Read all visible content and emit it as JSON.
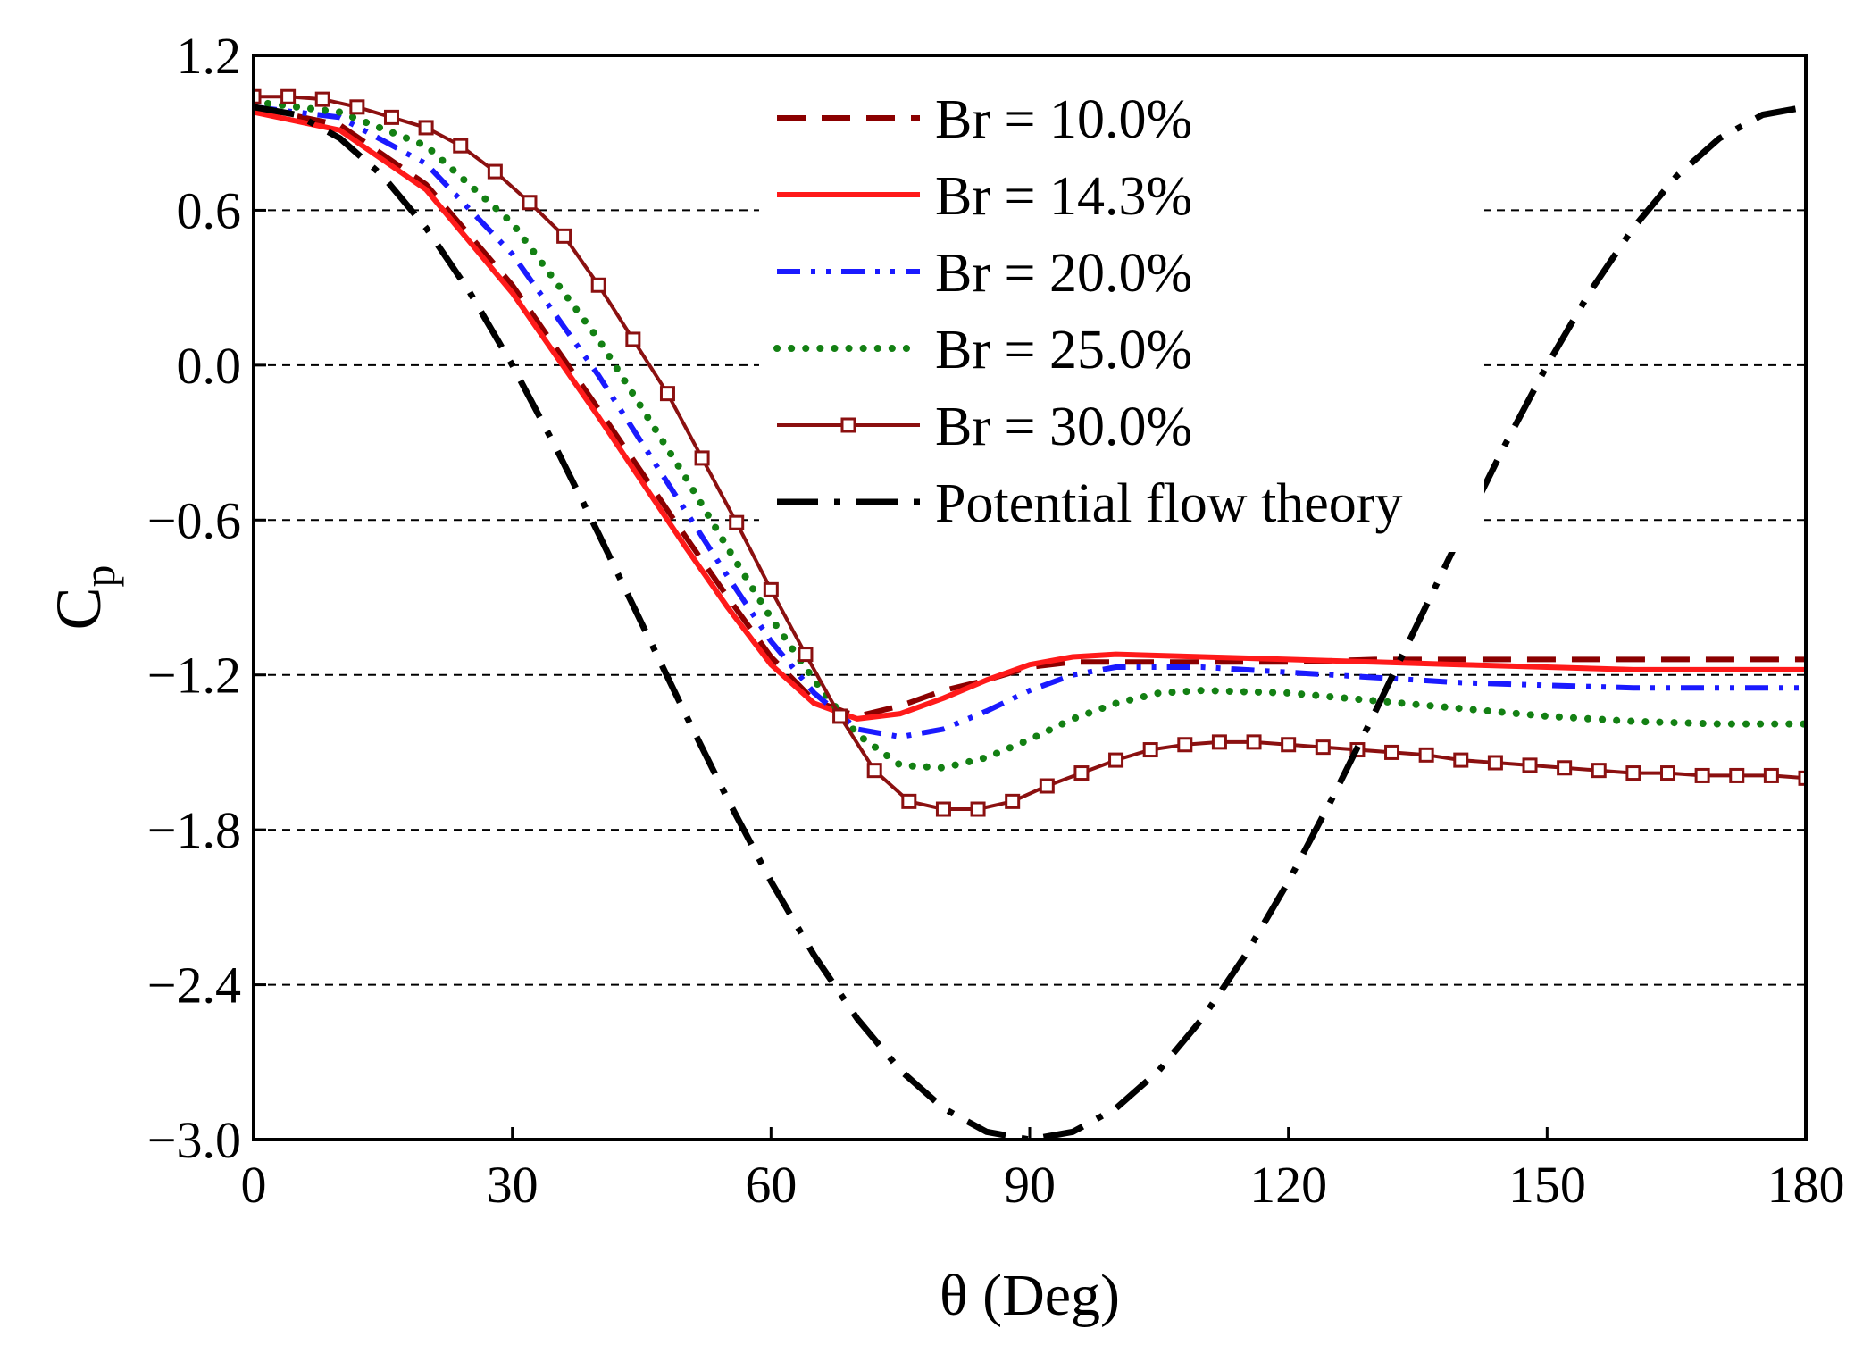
{
  "chart_data": {
    "type": "line",
    "title": "",
    "xlabel": "θ (Deg)",
    "ylabel": {
      "main": "C",
      "sub": "p"
    },
    "xlim": [
      0,
      180
    ],
    "ylim": [
      -3.0,
      1.2
    ],
    "xticks": [
      0,
      30,
      60,
      90,
      120,
      150,
      180
    ],
    "xtick_labels": [
      "0",
      "30",
      "60",
      "90",
      "120",
      "150",
      "180"
    ],
    "yticks": [
      1.2,
      0.6,
      0.0,
      -0.6,
      -1.2,
      -1.8,
      -2.4,
      -3.0
    ],
    "ytick_labels": [
      "1.2",
      "0.6",
      "0.0",
      "−0.6",
      "−1.2",
      "−1.8",
      "−2.4",
      "−3.0"
    ],
    "grid": {
      "y": [
        0.6,
        0.0,
        -0.6,
        -1.2,
        -1.8,
        -2.4
      ],
      "style": "dashed"
    },
    "legend_position": "top-center",
    "series": [
      {
        "name": "Br = 10.0%",
        "color": "#8b0000",
        "style": "dashed",
        "marker": "none",
        "x": [
          0,
          10,
          20,
          30,
          40,
          50,
          55,
          60,
          65,
          70,
          75,
          80,
          85,
          90,
          95,
          100,
          110,
          120,
          130,
          140,
          150,
          160,
          170,
          180
        ],
        "y": [
          1.0,
          0.93,
          0.7,
          0.31,
          -0.17,
          -0.66,
          -0.9,
          -1.13,
          -1.3,
          -1.36,
          -1.32,
          -1.26,
          -1.22,
          -1.17,
          -1.15,
          -1.15,
          -1.15,
          -1.15,
          -1.14,
          -1.14,
          -1.14,
          -1.14,
          -1.14,
          -1.14
        ]
      },
      {
        "name": "Br = 14.3%",
        "color": "#ff1a1a",
        "style": "solid",
        "marker": "none",
        "x": [
          0,
          10,
          20,
          30,
          40,
          50,
          55,
          60,
          65,
          70,
          75,
          80,
          85,
          90,
          95,
          100,
          110,
          120,
          130,
          140,
          150,
          160,
          170,
          180
        ],
        "y": [
          0.98,
          0.91,
          0.68,
          0.28,
          -0.2,
          -0.7,
          -0.94,
          -1.16,
          -1.31,
          -1.37,
          -1.35,
          -1.29,
          -1.22,
          -1.16,
          -1.13,
          -1.12,
          -1.13,
          -1.14,
          -1.15,
          -1.16,
          -1.17,
          -1.18,
          -1.18,
          -1.18
        ]
      },
      {
        "name": "Br = 20.0%",
        "color": "#1a1aff",
        "style": "dash-dot-dot",
        "marker": "none",
        "x": [
          0,
          10,
          20,
          30,
          40,
          50,
          55,
          60,
          65,
          70,
          75,
          80,
          85,
          90,
          95,
          100,
          110,
          120,
          130,
          140,
          150,
          160,
          170,
          180
        ],
        "y": [
          1.0,
          0.96,
          0.78,
          0.43,
          -0.04,
          -0.56,
          -0.82,
          -1.07,
          -1.27,
          -1.41,
          -1.44,
          -1.41,
          -1.34,
          -1.26,
          -1.2,
          -1.17,
          -1.17,
          -1.19,
          -1.21,
          -1.23,
          -1.24,
          -1.25,
          -1.25,
          -1.25
        ]
      },
      {
        "name": "Br = 25.0%",
        "color": "#138013",
        "style": "dotted",
        "marker": "none",
        "x": [
          0,
          10,
          20,
          30,
          40,
          50,
          55,
          60,
          65,
          70,
          75,
          80,
          85,
          90,
          95,
          100,
          105,
          110,
          120,
          130,
          140,
          150,
          160,
          170,
          180
        ],
        "y": [
          1.02,
          0.98,
          0.85,
          0.55,
          0.1,
          -0.43,
          -0.71,
          -0.98,
          -1.22,
          -1.43,
          -1.55,
          -1.56,
          -1.52,
          -1.45,
          -1.37,
          -1.31,
          -1.27,
          -1.26,
          -1.27,
          -1.3,
          -1.33,
          -1.36,
          -1.38,
          -1.39,
          -1.39
        ]
      },
      {
        "name": "Br = 30.0%",
        "color": "#8b1010",
        "style": "solid",
        "marker": "open-square",
        "x": [
          0,
          4,
          8,
          12,
          16,
          20,
          24,
          28,
          32,
          36,
          40,
          44,
          48,
          52,
          56,
          60,
          64,
          68,
          72,
          76,
          80,
          84,
          88,
          92,
          96,
          100,
          104,
          108,
          112,
          116,
          120,
          124,
          128,
          132,
          136,
          140,
          144,
          148,
          152,
          156,
          160,
          164,
          168,
          172,
          176,
          180
        ],
        "y": [
          1.04,
          1.04,
          1.03,
          1.0,
          0.96,
          0.92,
          0.85,
          0.75,
          0.63,
          0.5,
          0.31,
          0.1,
          -0.11,
          -0.36,
          -0.61,
          -0.87,
          -1.12,
          -1.36,
          -1.57,
          -1.69,
          -1.72,
          -1.72,
          -1.69,
          -1.63,
          -1.58,
          -1.53,
          -1.49,
          -1.47,
          -1.46,
          -1.46,
          -1.47,
          -1.48,
          -1.49,
          -1.5,
          -1.51,
          -1.53,
          -1.54,
          -1.55,
          -1.56,
          -1.57,
          -1.58,
          -1.58,
          -1.59,
          -1.59,
          -1.59,
          -1.6
        ]
      },
      {
        "name": "Potential flow theory",
        "color": "#000000",
        "style": "long-dash-dot",
        "marker": "none",
        "formula": "Cp = 1 - 4 sin^2(theta)",
        "x": [
          0,
          5,
          10,
          15,
          20,
          25,
          30,
          35,
          40,
          45,
          50,
          55,
          60,
          65,
          70,
          75,
          80,
          85,
          90,
          95,
          100,
          105,
          110,
          115,
          120,
          125,
          130,
          135,
          140,
          145,
          150,
          155,
          160,
          165,
          170,
          175,
          180
        ],
        "y": [
          1.0,
          0.97,
          0.879,
          0.732,
          0.532,
          0.286,
          0.0,
          -0.316,
          -0.653,
          -1.0,
          -1.347,
          -1.684,
          -2.0,
          -2.286,
          -2.532,
          -2.732,
          -2.879,
          -2.97,
          -3.0,
          -2.97,
          -2.879,
          -2.732,
          -2.532,
          -2.286,
          -2.0,
          -1.684,
          -1.347,
          -1.0,
          -0.653,
          -0.316,
          0.0,
          0.286,
          0.532,
          0.732,
          0.879,
          0.97,
          1.0
        ]
      }
    ]
  }
}
